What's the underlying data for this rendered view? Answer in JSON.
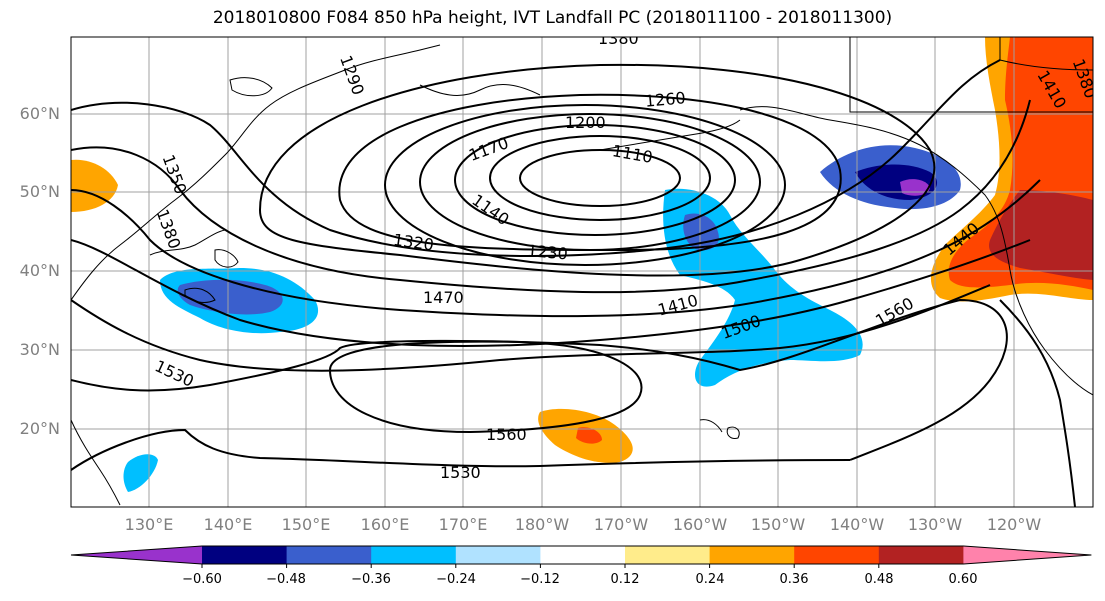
{
  "title": "2018010800 F084 850 hPa height, IVT Landfall PC (2018011100 - 2018011300)",
  "lat_labels": [
    "60°N",
    "50°N",
    "40°N",
    "30°N",
    "20°N"
  ],
  "lon_labels": [
    "130°E",
    "140°E",
    "150°E",
    "160°E",
    "170°E",
    "180°W",
    "170°W",
    "160°W",
    "150°W",
    "140°W",
    "130°W",
    "120°W"
  ],
  "contour_labels": [
    "1380",
    "1290",
    "1260",
    "1410",
    "1380",
    "1350",
    "1380",
    "1200",
    "1170",
    "1110",
    "1140",
    "1320",
    "1230",
    "1440",
    "1470",
    "1410",
    "1500",
    "1560",
    "1530",
    "1560",
    "1530"
  ],
  "colorbar": {
    "colors": [
      "#9932cc",
      "#000080",
      "#3a5fcd",
      "#00bfff",
      "#b0e2ff",
      "#ffffff",
      "#ffec8b",
      "#ffa500",
      "#ff4500",
      "#b22222",
      "#ff82ab"
    ],
    "tick_labels": [
      "−0.60",
      "−0.48",
      "−0.36",
      "−0.24",
      "−0.12",
      "0.12",
      "0.24",
      "0.36",
      "0.48",
      "0.60"
    ]
  }
}
